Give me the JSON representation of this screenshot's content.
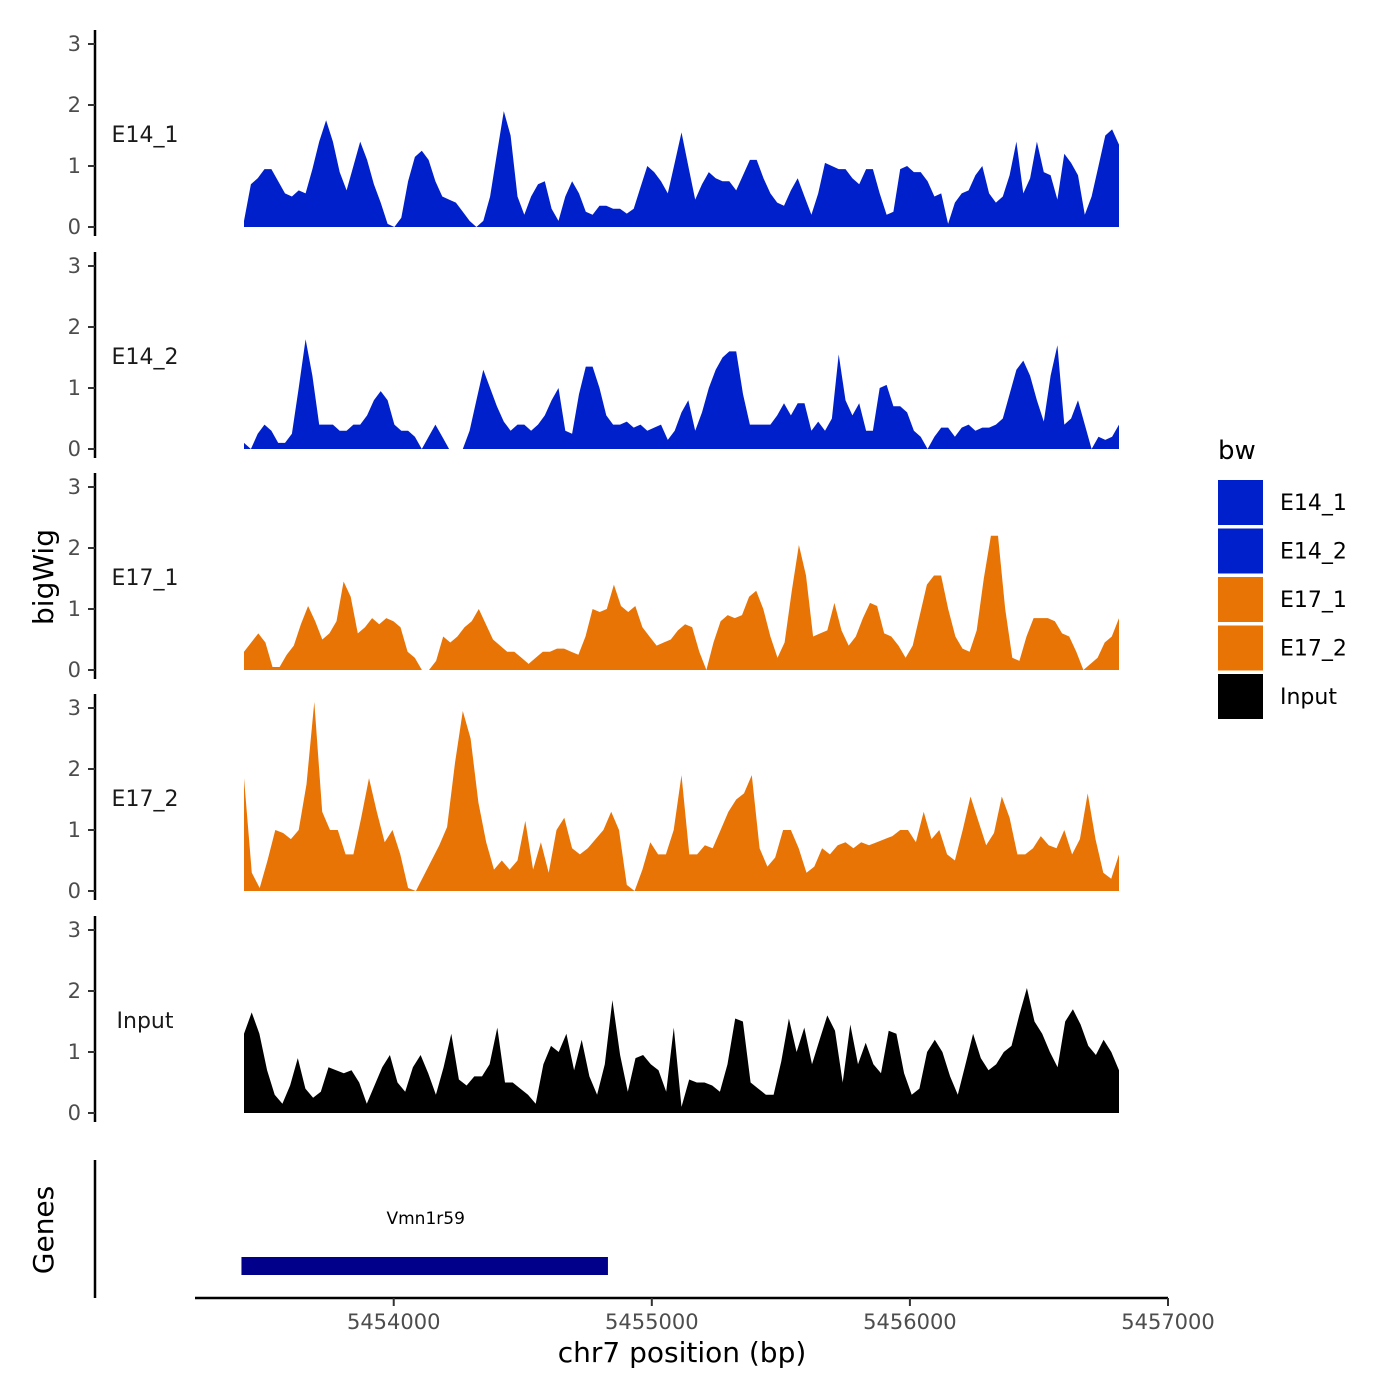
{
  "chart_data": {
    "type": "area",
    "ylabel": "bigWig",
    "xlabel": "chr7 position (bp)",
    "genes_label": "Genes",
    "xlim": [
      5453230,
      5457000
    ],
    "ylim": [
      0,
      3.2
    ],
    "y_ticks": [
      "0",
      "1",
      "2",
      "3"
    ],
    "x_ticks": [
      {
        "value": 5454000,
        "label": "5454000"
      },
      {
        "value": 5455000,
        "label": "5455000"
      },
      {
        "value": 5456000,
        "label": "5456000"
      },
      {
        "value": 5457000,
        "label": "5457000"
      }
    ],
    "legend_title": "bw",
    "legend": [
      {
        "name": "E14_1",
        "color": "#0020CC"
      },
      {
        "name": "E14_2",
        "color": "#0020CC"
      },
      {
        "name": "E17_1",
        "color": "#E87406"
      },
      {
        "name": "E17_2",
        "color": "#E87406"
      },
      {
        "name": "Input",
        "color": "#000000"
      }
    ],
    "x_start": 5453420,
    "x_end": 5456810,
    "tracks": [
      {
        "name": "E14_1",
        "color": "#0020CC",
        "values": [
          0.1,
          0.7,
          0.8,
          0.95,
          0.95,
          0.75,
          0.55,
          0.5,
          0.6,
          0.55,
          0.95,
          1.4,
          1.75,
          1.4,
          0.9,
          0.6,
          1.0,
          1.4,
          1.1,
          0.7,
          0.4,
          0.05,
          0.0,
          0.15,
          0.75,
          1.15,
          1.25,
          1.1,
          0.75,
          0.5,
          0.45,
          0.4,
          0.25,
          0.1,
          0.0,
          0.1,
          0.5,
          1.2,
          1.9,
          1.5,
          0.5,
          0.2,
          0.5,
          0.7,
          0.75,
          0.3,
          0.1,
          0.5,
          0.75,
          0.55,
          0.25,
          0.2,
          0.35,
          0.35,
          0.3,
          0.3,
          0.22,
          0.3,
          0.65,
          1.0,
          0.9,
          0.75,
          0.55,
          1.05,
          1.55,
          1.0,
          0.45,
          0.7,
          0.9,
          0.8,
          0.75,
          0.75,
          0.6,
          0.85,
          1.1,
          1.1,
          0.8,
          0.55,
          0.4,
          0.35,
          0.6,
          0.8,
          0.5,
          0.2,
          0.55,
          1.05,
          1.0,
          0.95,
          0.95,
          0.8,
          0.7,
          0.95,
          0.95,
          0.55,
          0.2,
          0.25,
          0.95,
          1.0,
          0.9,
          0.9,
          0.75,
          0.5,
          0.55,
          0.05,
          0.4,
          0.55,
          0.6,
          0.85,
          1.0,
          0.55,
          0.4,
          0.5,
          0.85,
          1.4,
          0.55,
          0.8,
          1.4,
          0.9,
          0.85,
          0.45,
          1.2,
          1.05,
          0.85,
          0.2,
          0.5,
          1.0,
          1.5,
          1.6,
          1.35
        ]
      },
      {
        "name": "E14_2",
        "color": "#0020CC",
        "values": [
          0.1,
          0.0,
          0.25,
          0.4,
          0.3,
          0.1,
          0.1,
          0.25,
          1.0,
          1.8,
          1.2,
          0.4,
          0.4,
          0.4,
          0.3,
          0.3,
          0.4,
          0.4,
          0.55,
          0.8,
          0.95,
          0.8,
          0.4,
          0.3,
          0.3,
          0.2,
          0.0,
          0.2,
          0.4,
          0.2,
          0.0,
          0.0,
          0.0,
          0.3,
          0.8,
          1.3,
          1.0,
          0.7,
          0.45,
          0.3,
          0.4,
          0.4,
          0.3,
          0.4,
          0.55,
          0.8,
          1.0,
          0.3,
          0.25,
          0.9,
          1.35,
          1.35,
          1.0,
          0.55,
          0.4,
          0.4,
          0.45,
          0.35,
          0.4,
          0.3,
          0.35,
          0.4,
          0.15,
          0.3,
          0.6,
          0.8,
          0.3,
          0.6,
          1.0,
          1.3,
          1.5,
          1.6,
          1.6,
          0.9,
          0.4,
          0.4,
          0.4,
          0.4,
          0.55,
          0.75,
          0.55,
          0.75,
          0.75,
          0.3,
          0.45,
          0.3,
          0.5,
          1.55,
          0.8,
          0.55,
          0.75,
          0.3,
          0.3,
          1.0,
          1.05,
          0.7,
          0.7,
          0.6,
          0.3,
          0.2,
          0.0,
          0.2,
          0.35,
          0.35,
          0.2,
          0.35,
          0.4,
          0.3,
          0.35,
          0.35,
          0.4,
          0.5,
          0.9,
          1.3,
          1.45,
          1.2,
          0.8,
          0.45,
          1.2,
          1.7,
          0.4,
          0.5,
          0.8,
          0.4,
          0.0,
          0.2,
          0.15,
          0.2,
          0.4
        ]
      },
      {
        "name": "E17_1",
        "color": "#E87406",
        "values": [
          0.3,
          0.45,
          0.6,
          0.45,
          0.05,
          0.05,
          0.25,
          0.4,
          0.75,
          1.05,
          0.8,
          0.5,
          0.6,
          0.8,
          1.45,
          1.2,
          0.6,
          0.7,
          0.85,
          0.75,
          0.85,
          0.8,
          0.7,
          0.3,
          0.2,
          0.0,
          0.0,
          0.15,
          0.55,
          0.45,
          0.55,
          0.7,
          0.8,
          1.0,
          0.75,
          0.5,
          0.4,
          0.3,
          0.3,
          0.2,
          0.1,
          0.2,
          0.3,
          0.3,
          0.35,
          0.35,
          0.3,
          0.25,
          0.55,
          1.0,
          0.95,
          1.0,
          1.4,
          1.05,
          0.95,
          1.05,
          0.7,
          0.55,
          0.4,
          0.45,
          0.5,
          0.65,
          0.75,
          0.7,
          0.3,
          0.0,
          0.45,
          0.8,
          0.9,
          0.85,
          0.9,
          1.2,
          1.3,
          1.0,
          0.55,
          0.2,
          0.45,
          1.3,
          2.05,
          1.55,
          0.55,
          0.6,
          0.65,
          1.1,
          0.65,
          0.4,
          0.55,
          0.85,
          1.1,
          1.05,
          0.6,
          0.55,
          0.4,
          0.2,
          0.4,
          0.9,
          1.4,
          1.55,
          1.55,
          1.0,
          0.55,
          0.35,
          0.3,
          0.65,
          1.5,
          2.2,
          2.2,
          1.0,
          0.2,
          0.15,
          0.55,
          0.85,
          0.85,
          0.85,
          0.8,
          0.6,
          0.55,
          0.3,
          0.0,
          0.1,
          0.2,
          0.45,
          0.55,
          0.85
        ]
      },
      {
        "name": "E17_2",
        "color": "#E87406",
        "values": [
          1.85,
          0.3,
          0.05,
          0.5,
          1.0,
          0.95,
          0.85,
          1.0,
          1.75,
          3.1,
          1.3,
          1.0,
          1.0,
          0.6,
          0.6,
          1.2,
          1.85,
          1.3,
          0.8,
          1.0,
          0.6,
          0.05,
          0.0,
          0.25,
          0.5,
          0.75,
          1.05,
          2.1,
          2.95,
          2.5,
          1.45,
          0.8,
          0.35,
          0.5,
          0.35,
          0.5,
          1.15,
          0.35,
          0.8,
          0.3,
          1.0,
          1.2,
          0.7,
          0.6,
          0.7,
          0.85,
          1.0,
          1.3,
          1.0,
          0.1,
          0.0,
          0.35,
          0.8,
          0.6,
          0.6,
          1.0,
          1.9,
          0.6,
          0.6,
          0.75,
          0.7,
          1.0,
          1.3,
          1.5,
          1.6,
          1.9,
          0.7,
          0.4,
          0.55,
          1.0,
          1.0,
          0.7,
          0.3,
          0.4,
          0.7,
          0.6,
          0.75,
          0.8,
          0.7,
          0.8,
          0.75,
          0.8,
          0.85,
          0.9,
          1.0,
          1.0,
          0.8,
          1.3,
          0.85,
          1.0,
          0.6,
          0.5,
          1.0,
          1.55,
          1.15,
          0.75,
          0.95,
          1.55,
          1.2,
          0.6,
          0.6,
          0.7,
          0.9,
          0.75,
          0.7,
          1.0,
          0.6,
          0.85,
          1.6,
          0.85,
          0.3,
          0.2,
          0.6
        ]
      },
      {
        "name": "Input",
        "color": "#000000",
        "values": [
          1.3,
          1.65,
          1.3,
          0.7,
          0.3,
          0.15,
          0.45,
          0.9,
          0.4,
          0.25,
          0.35,
          0.75,
          0.7,
          0.65,
          0.7,
          0.5,
          0.15,
          0.45,
          0.75,
          0.95,
          0.5,
          0.35,
          0.75,
          0.95,
          0.65,
          0.3,
          0.75,
          1.3,
          0.55,
          0.45,
          0.6,
          0.6,
          0.8,
          1.4,
          0.5,
          0.5,
          0.4,
          0.3,
          0.15,
          0.8,
          1.1,
          1.0,
          1.3,
          0.7,
          1.2,
          0.6,
          0.3,
          0.8,
          1.85,
          0.95,
          0.35,
          0.9,
          0.95,
          0.8,
          0.7,
          0.35,
          1.4,
          0.1,
          0.55,
          0.5,
          0.5,
          0.45,
          0.35,
          0.8,
          1.55,
          1.5,
          0.5,
          0.4,
          0.3,
          0.3,
          0.85,
          1.55,
          1.0,
          1.4,
          0.8,
          1.2,
          1.6,
          1.35,
          0.5,
          1.45,
          0.8,
          1.15,
          0.8,
          0.65,
          1.35,
          1.3,
          0.65,
          0.3,
          0.4,
          1.0,
          1.2,
          1.0,
          0.6,
          0.3,
          0.8,
          1.3,
          0.9,
          0.7,
          0.8,
          1.0,
          1.1,
          1.6,
          2.05,
          1.5,
          1.3,
          1.0,
          0.75,
          1.5,
          1.7,
          1.45,
          1.1,
          0.95,
          1.2,
          1.0,
          0.7
        ]
      }
    ],
    "genes": [
      {
        "name": "Vmn1r59",
        "start": 5453410,
        "end": 5454830,
        "color": "#00008B"
      }
    ]
  }
}
